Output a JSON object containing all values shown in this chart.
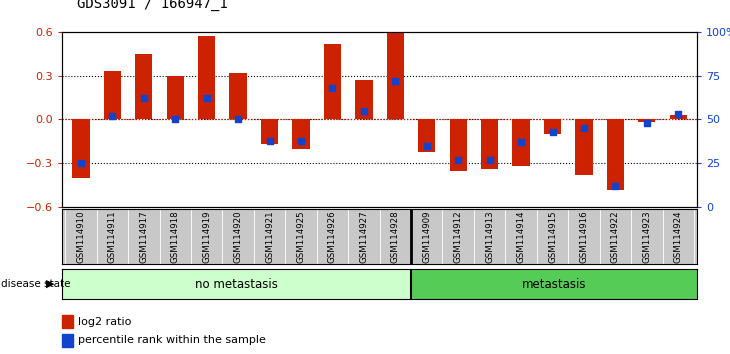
{
  "title": "GDS3091 / 166947_1",
  "samples": [
    "GSM114910",
    "GSM114911",
    "GSM114917",
    "GSM114918",
    "GSM114919",
    "GSM114920",
    "GSM114921",
    "GSM114925",
    "GSM114926",
    "GSM114927",
    "GSM114928",
    "GSM114909",
    "GSM114912",
    "GSM114913",
    "GSM114914",
    "GSM114915",
    "GSM114916",
    "GSM114922",
    "GSM114923",
    "GSM114924"
  ],
  "log2_ratio": [
    -0.4,
    0.33,
    0.45,
    0.3,
    0.57,
    0.32,
    -0.17,
    -0.2,
    0.52,
    0.27,
    0.59,
    -0.22,
    -0.35,
    -0.34,
    -0.32,
    -0.1,
    -0.38,
    -0.48,
    -0.02,
    0.03
  ],
  "percentile": [
    25,
    52,
    62,
    50,
    62,
    50,
    38,
    38,
    68,
    55,
    72,
    35,
    27,
    27,
    37,
    43,
    45,
    12,
    48,
    53
  ],
  "no_metastasis_count": 11,
  "metastasis_count": 9,
  "bar_color_red": "#cc2200",
  "bar_color_blue": "#1144cc",
  "background_color": "#ffffff",
  "tick_label_area_color": "#c8c8c8",
  "no_metastasis_color": "#ccffcc",
  "metastasis_color": "#55cc55",
  "ylim": [
    -0.6,
    0.6
  ],
  "yticks_left": [
    -0.6,
    -0.3,
    0.0,
    0.3,
    0.6
  ],
  "yticks_right": [
    0,
    25,
    50,
    75,
    100
  ],
  "bar_width": 0.55
}
